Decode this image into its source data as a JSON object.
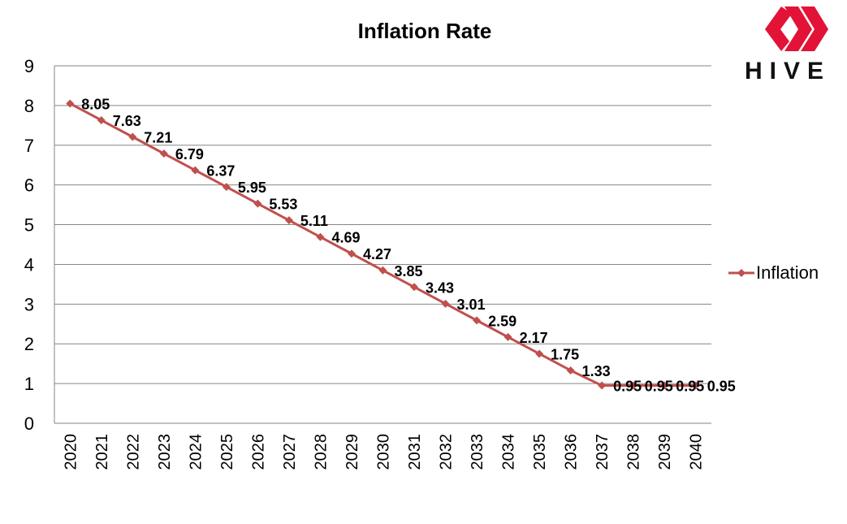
{
  "chart_data": {
    "type": "line",
    "title": "Inflation Rate",
    "xlabel": "",
    "ylabel": "",
    "categories": [
      "2020",
      "2021",
      "2022",
      "2023",
      "2024",
      "2025",
      "2026",
      "2027",
      "2028",
      "2029",
      "2030",
      "2031",
      "2032",
      "2033",
      "2034",
      "2035",
      "2036",
      "2037",
      "2038",
      "2039",
      "2040"
    ],
    "series": [
      {
        "name": "Inflation",
        "color": "#c0504d",
        "values": [
          8.05,
          7.63,
          7.21,
          6.79,
          6.37,
          5.95,
          5.53,
          5.11,
          4.69,
          4.27,
          3.85,
          3.43,
          3.01,
          2.59,
          2.17,
          1.75,
          1.33,
          0.95,
          0.95,
          0.95,
          0.95
        ],
        "labels": [
          "8.05",
          "7.63",
          "7.21",
          "6.79",
          "6.37",
          "5.95",
          "5.53",
          "5.11",
          "4.69",
          "4.27",
          "3.85",
          "3.43",
          "3.01",
          "2.59",
          "2.17",
          "1.75",
          "1.33",
          "0.95",
          "0.95",
          "0.95",
          "0.95"
        ]
      }
    ],
    "yticks": [
      "0",
      "1",
      "2",
      "3",
      "4",
      "5",
      "6",
      "7",
      "8",
      "9"
    ],
    "ylim": [
      0,
      9
    ],
    "grid": true,
    "legend": "right",
    "marker": "diamond"
  },
  "logo": {
    "text": "HIVE",
    "color": "#e31337",
    "icon": "hive-logo-icon"
  }
}
